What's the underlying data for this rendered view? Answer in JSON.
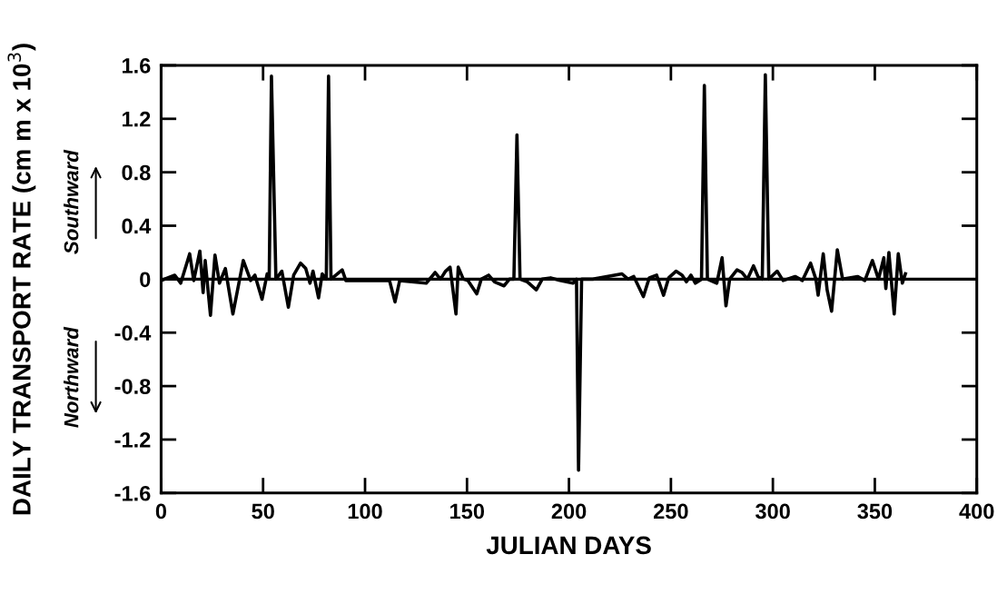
{
  "chart_data": {
    "type": "line",
    "xlabel": "JULIAN DAYS",
    "ylabel": "DAILY TRANSPORT RATE (cm m x 10$^{3}$)",
    "annotations": [
      "Southward",
      "Northward"
    ],
    "series": [
      {
        "color": "#000000",
        "x": [
          0,
          6.7,
          9.6,
          14,
          16,
          19,
          20.6,
          21.6,
          24.2,
          26.4,
          28.6,
          31.5,
          35.2,
          40.3,
          43.9,
          46,
          49.5,
          52,
          53,
          54.1,
          56.3,
          59.2,
          62.4,
          65,
          68.4,
          70.9,
          73,
          74.5,
          77.2,
          79,
          81,
          82.1,
          83.3,
          88.8,
          90.6,
          112,
          114.7,
          117,
          130,
          134.4,
          137,
          139.5,
          141.7,
          144.6,
          145.7,
          148.2,
          150.4,
          154.8,
          157,
          160.6,
          163.5,
          168.2,
          170.8,
          173,
          174.5,
          176,
          179.6,
          184,
          186.9,
          191,
          195.6,
          202,
          203.7,
          204.7,
          206.2,
          211.7,
          226,
          229,
          231.8,
          236.5,
          239.4,
          243,
          246.4,
          248.9,
          252.5,
          255.5,
          257.6,
          259.8,
          262,
          265,
          266.4,
          267.9,
          272.5,
          275.1,
          277,
          278.8,
          282.4,
          284.9,
          287.5,
          290.5,
          292.7,
          294.8,
          296.3,
          298,
          302.1,
          305,
          310.9,
          314.5,
          318.5,
          321.1,
          322.2,
          324.7,
          326.6,
          328.8,
          331.6,
          334.2,
          341.5,
          345.1,
          348.8,
          351.8,
          354.4,
          355.4,
          356.9,
          359.5,
          361.5,
          363.5,
          365
        ],
        "values": [
          -0.01,
          0.03,
          -0.03,
          0.19,
          -0.01,
          0.21,
          -0.1,
          0.14,
          -0.27,
          0.18,
          -0.03,
          0.08,
          -0.26,
          0.14,
          -0.01,
          0.03,
          -0.15,
          0.04,
          0,
          1.52,
          0,
          0.06,
          -0.21,
          0.03,
          0.12,
          0.08,
          -0.03,
          0.06,
          -0.14,
          0.04,
          0,
          1.52,
          0,
          0.07,
          -0.01,
          -0.01,
          -0.17,
          -0.01,
          -0.03,
          0.05,
          0,
          0.06,
          0.09,
          -0.26,
          0.09,
          0,
          -0.01,
          -0.11,
          0,
          0.03,
          -0.02,
          -0.05,
          0,
          0,
          1.08,
          0,
          -0.02,
          -0.08,
          0,
          0.01,
          -0.01,
          -0.03,
          0,
          -1.43,
          0,
          0,
          0.04,
          0,
          0.02,
          -0.13,
          0.01,
          0.03,
          -0.12,
          0.01,
          0.06,
          0.03,
          -0.02,
          0.03,
          -0.03,
          0,
          1.45,
          0,
          -0.03,
          0.16,
          -0.2,
          0,
          0.07,
          0.05,
          0,
          0.1,
          0.02,
          0,
          1.53,
          0,
          0.06,
          -0.01,
          0.02,
          -0.01,
          0.12,
          0,
          -0.12,
          0.19,
          -0.08,
          -0.24,
          0.22,
          0,
          0.02,
          -0.01,
          0.14,
          0,
          0.16,
          -0.07,
          0.2,
          -0.26,
          0.19,
          -0.03,
          0.04
        ]
      }
    ],
    "ref_lines": [
      {
        "axis": "y",
        "value": 0,
        "color": "#000000"
      }
    ],
    "xlim": [
      0,
      400
    ],
    "xticks": [
      0,
      50,
      100,
      150,
      200,
      250,
      300,
      350,
      400
    ],
    "ylim": [
      -1.6,
      1.6
    ],
    "yticks": [
      1.6,
      1.2,
      0.8,
      0.4,
      0,
      {
        "value": -0.4,
        "label": "-0.4"
      },
      {
        "value": -0.8,
        "label": "-0.8"
      },
      {
        "value": -1.2,
        "label": "-1.2"
      },
      {
        "value": -1.6,
        "label": "-1.6"
      }
    ],
    "grid": false,
    "legend": false,
    "marker": "none",
    "line_style": "solid"
  }
}
